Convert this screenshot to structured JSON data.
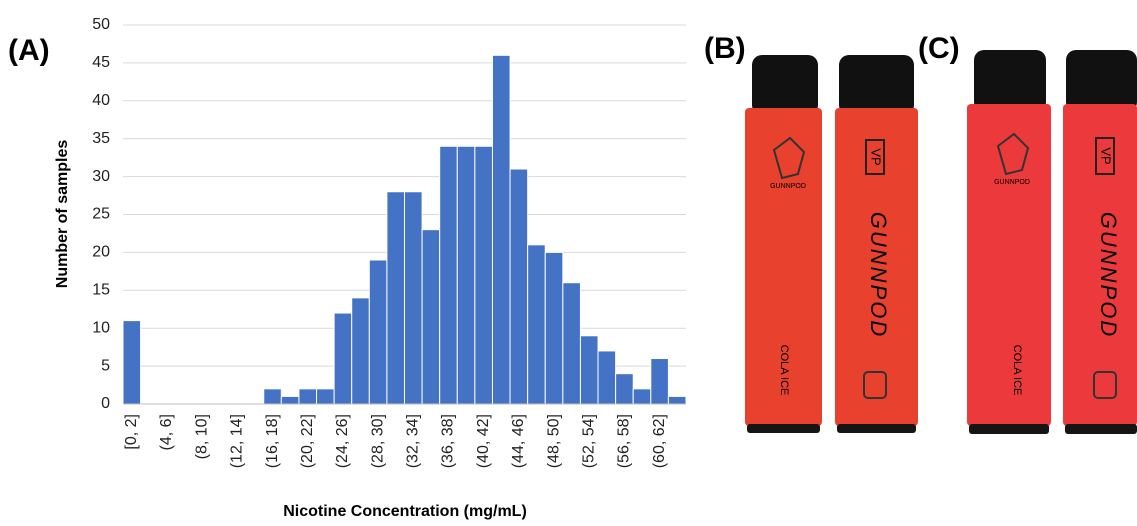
{
  "chart_data": {
    "type": "bar",
    "x_label": "Nicotine Concentration (mg/mL)",
    "y_label": "Number of samples",
    "categories": [
      "[0, 2]",
      null,
      "(4, 6]",
      null,
      "(8, 10]",
      null,
      "(12, 14]",
      null,
      "(16, 18]",
      null,
      "(20, 22]",
      null,
      "(24, 26]",
      null,
      "(28, 30]",
      null,
      "(32, 34]",
      null,
      "(36, 38]",
      null,
      "(40, 42]",
      null,
      "(44, 46]",
      null,
      "(48, 50]",
      null,
      "(52, 54]",
      null,
      "(56, 58]",
      null,
      "(60, 62]",
      null
    ],
    "values": [
      11,
      0,
      0,
      0,
      0,
      0,
      0,
      0,
      2,
      1,
      2,
      2,
      12,
      14,
      19,
      28,
      28,
      23,
      34,
      34,
      34,
      46,
      31,
      21,
      20,
      16,
      9,
      7,
      4,
      2,
      6,
      1
    ],
    "color": "#4472c4",
    "ylim": [
      0,
      50
    ],
    "yticks": [
      0,
      5,
      10,
      15,
      20,
      25,
      30,
      35,
      40,
      45,
      50
    ],
    "grid": true
  },
  "panel_labels": [
    "(A)",
    "(B)",
    "(C)"
  ],
  "device": {
    "brand": "GUNNPOD",
    "flavor": "COLA ICE",
    "mark": "VP"
  }
}
